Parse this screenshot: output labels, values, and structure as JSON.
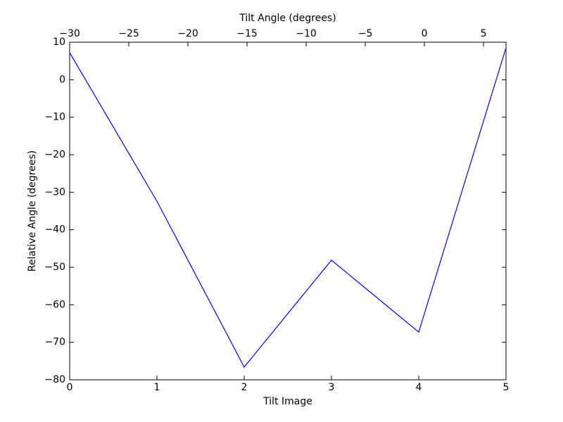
{
  "chart_data": {
    "type": "line",
    "xlabel": "Tilt Image",
    "ylabel": "Relative Angle (degrees)",
    "x2label": "Tilt Angle (degrees)",
    "x": [
      0,
      1,
      2,
      3,
      4,
      5
    ],
    "series": [
      {
        "color": "#0000ff",
        "values": [
          7.2,
          -32.4,
          -76.6,
          -48.1,
          -67.3,
          8.5
        ]
      }
    ],
    "xlim": [
      0,
      5
    ],
    "xticks": [
      0,
      1,
      2,
      3,
      4,
      5
    ],
    "ylim": [
      -80,
      10
    ],
    "yticks": [
      {
        "value": -80,
        "label": "−80"
      },
      {
        "value": -70,
        "label": "−70"
      },
      {
        "value": -60,
        "label": "−60"
      },
      {
        "value": -50,
        "label": "−50"
      },
      {
        "value": -40,
        "label": "−40"
      },
      {
        "value": -30,
        "label": "−30"
      },
      {
        "value": -20,
        "label": "−20"
      },
      {
        "value": -10,
        "label": "−10"
      },
      0,
      10
    ],
    "x2lim": [
      -30,
      6.9
    ],
    "x2ticks": [
      {
        "value": -30,
        "label": "−30"
      },
      {
        "value": -25,
        "label": "−25"
      },
      {
        "value": -20,
        "label": "−20"
      },
      {
        "value": -15,
        "label": "−15"
      },
      {
        "value": -10,
        "label": "−10"
      },
      {
        "value": -5,
        "label": "−5"
      },
      0,
      5
    ]
  }
}
